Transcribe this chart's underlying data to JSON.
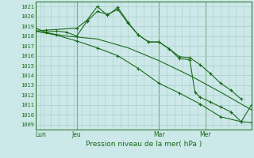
{
  "bg_color": "#cce8e8",
  "grid_color": "#aacccc",
  "line_color": "#1a6b1a",
  "title": "Pression niveau de la mer( hPa )",
  "ylabel_values": [
    1009,
    1010,
    1011,
    1012,
    1013,
    1014,
    1015,
    1016,
    1017,
    1018,
    1019,
    1020,
    1021
  ],
  "ylim": [
    1008.5,
    1021.5
  ],
  "xlim": [
    0,
    42
  ],
  "day_labels": [
    "Lun",
    "Jeu",
    "Mar",
    "Mer"
  ],
  "day_positions": [
    1,
    8,
    24,
    33
  ],
  "vline_positions": [
    8,
    24,
    33
  ],
  "series1_x": [
    0,
    2,
    4,
    6,
    8,
    10,
    12,
    14,
    16,
    18,
    20,
    22,
    24,
    26,
    28,
    30,
    32,
    34,
    36,
    38,
    40
  ],
  "series1_y": [
    1018.8,
    1018.4,
    1018.5,
    1018.4,
    1018.0,
    1019.5,
    1020.5,
    1020.2,
    1020.7,
    1019.3,
    1018.1,
    1017.4,
    1017.4,
    1016.7,
    1015.9,
    1015.8,
    1015.1,
    1014.2,
    1013.2,
    1012.5,
    1011.6
  ],
  "series2_x": [
    0,
    6,
    12,
    18,
    24,
    30,
    36,
    42
  ],
  "series2_y": [
    1018.5,
    1018.0,
    1017.7,
    1016.8,
    1015.5,
    1014.0,
    1012.3,
    1010.5
  ],
  "series3_x": [
    0,
    2,
    8,
    10,
    12,
    14,
    16,
    18,
    20,
    22,
    24,
    26,
    28,
    30,
    31,
    32,
    34,
    36,
    38,
    40,
    42
  ],
  "series3_y": [
    1018.5,
    1018.6,
    1018.8,
    1019.6,
    1021.0,
    1020.1,
    1020.9,
    1019.4,
    1018.1,
    1017.4,
    1017.4,
    1016.7,
    1015.7,
    1015.6,
    1012.3,
    1011.8,
    1011.3,
    1010.8,
    1010.3,
    1009.3,
    1009.2
  ],
  "series4_x": [
    0,
    4,
    8,
    12,
    16,
    20,
    24,
    28,
    32,
    36,
    40,
    42
  ],
  "series4_y": [
    1018.5,
    1018.1,
    1017.5,
    1016.8,
    1016.0,
    1014.7,
    1013.2,
    1012.2,
    1011.1,
    1009.8,
    1009.3,
    1011.0
  ]
}
